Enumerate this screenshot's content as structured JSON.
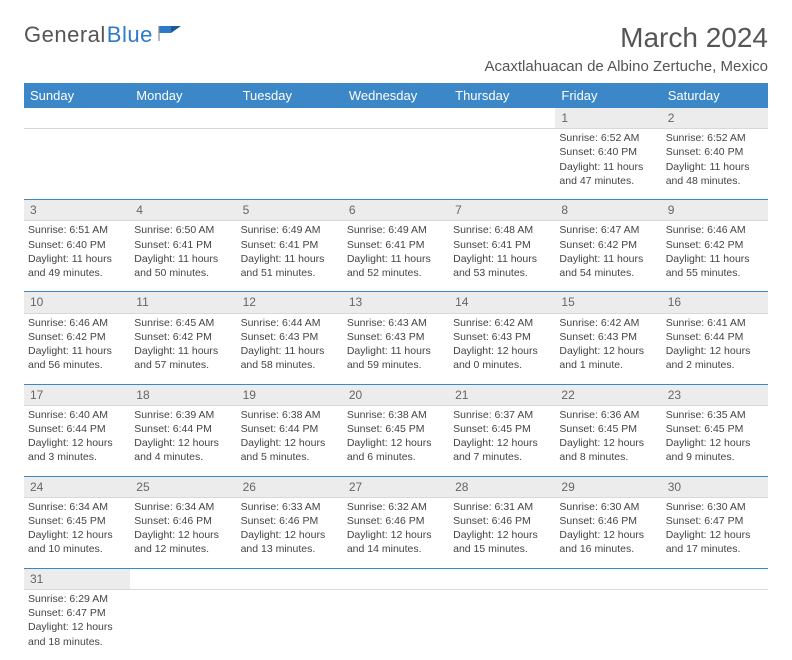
{
  "logo": {
    "text1": "General",
    "text2": "Blue"
  },
  "title": "March 2024",
  "location": "Acaxtlahuacan de Albino Zertuche, Mexico",
  "colors": {
    "header_bg": "#3b87c8",
    "header_text": "#ffffff",
    "daynum_bg": "#ececec",
    "row_sep": "#3b87c8",
    "body_text": "#444444",
    "title_text": "#555555"
  },
  "weekdays": [
    "Sunday",
    "Monday",
    "Tuesday",
    "Wednesday",
    "Thursday",
    "Friday",
    "Saturday"
  ],
  "weeks": [
    [
      null,
      null,
      null,
      null,
      null,
      {
        "d": "1",
        "sr": "Sunrise: 6:52 AM",
        "ss": "Sunset: 6:40 PM",
        "dl1": "Daylight: 11 hours",
        "dl2": "and 47 minutes."
      },
      {
        "d": "2",
        "sr": "Sunrise: 6:52 AM",
        "ss": "Sunset: 6:40 PM",
        "dl1": "Daylight: 11 hours",
        "dl2": "and 48 minutes."
      }
    ],
    [
      {
        "d": "3",
        "sr": "Sunrise: 6:51 AM",
        "ss": "Sunset: 6:40 PM",
        "dl1": "Daylight: 11 hours",
        "dl2": "and 49 minutes."
      },
      {
        "d": "4",
        "sr": "Sunrise: 6:50 AM",
        "ss": "Sunset: 6:41 PM",
        "dl1": "Daylight: 11 hours",
        "dl2": "and 50 minutes."
      },
      {
        "d": "5",
        "sr": "Sunrise: 6:49 AM",
        "ss": "Sunset: 6:41 PM",
        "dl1": "Daylight: 11 hours",
        "dl2": "and 51 minutes."
      },
      {
        "d": "6",
        "sr": "Sunrise: 6:49 AM",
        "ss": "Sunset: 6:41 PM",
        "dl1": "Daylight: 11 hours",
        "dl2": "and 52 minutes."
      },
      {
        "d": "7",
        "sr": "Sunrise: 6:48 AM",
        "ss": "Sunset: 6:41 PM",
        "dl1": "Daylight: 11 hours",
        "dl2": "and 53 minutes."
      },
      {
        "d": "8",
        "sr": "Sunrise: 6:47 AM",
        "ss": "Sunset: 6:42 PM",
        "dl1": "Daylight: 11 hours",
        "dl2": "and 54 minutes."
      },
      {
        "d": "9",
        "sr": "Sunrise: 6:46 AM",
        "ss": "Sunset: 6:42 PM",
        "dl1": "Daylight: 11 hours",
        "dl2": "and 55 minutes."
      }
    ],
    [
      {
        "d": "10",
        "sr": "Sunrise: 6:46 AM",
        "ss": "Sunset: 6:42 PM",
        "dl1": "Daylight: 11 hours",
        "dl2": "and 56 minutes."
      },
      {
        "d": "11",
        "sr": "Sunrise: 6:45 AM",
        "ss": "Sunset: 6:42 PM",
        "dl1": "Daylight: 11 hours",
        "dl2": "and 57 minutes."
      },
      {
        "d": "12",
        "sr": "Sunrise: 6:44 AM",
        "ss": "Sunset: 6:43 PM",
        "dl1": "Daylight: 11 hours",
        "dl2": "and 58 minutes."
      },
      {
        "d": "13",
        "sr": "Sunrise: 6:43 AM",
        "ss": "Sunset: 6:43 PM",
        "dl1": "Daylight: 11 hours",
        "dl2": "and 59 minutes."
      },
      {
        "d": "14",
        "sr": "Sunrise: 6:42 AM",
        "ss": "Sunset: 6:43 PM",
        "dl1": "Daylight: 12 hours",
        "dl2": "and 0 minutes."
      },
      {
        "d": "15",
        "sr": "Sunrise: 6:42 AM",
        "ss": "Sunset: 6:43 PM",
        "dl1": "Daylight: 12 hours",
        "dl2": "and 1 minute."
      },
      {
        "d": "16",
        "sr": "Sunrise: 6:41 AM",
        "ss": "Sunset: 6:44 PM",
        "dl1": "Daylight: 12 hours",
        "dl2": "and 2 minutes."
      }
    ],
    [
      {
        "d": "17",
        "sr": "Sunrise: 6:40 AM",
        "ss": "Sunset: 6:44 PM",
        "dl1": "Daylight: 12 hours",
        "dl2": "and 3 minutes."
      },
      {
        "d": "18",
        "sr": "Sunrise: 6:39 AM",
        "ss": "Sunset: 6:44 PM",
        "dl1": "Daylight: 12 hours",
        "dl2": "and 4 minutes."
      },
      {
        "d": "19",
        "sr": "Sunrise: 6:38 AM",
        "ss": "Sunset: 6:44 PM",
        "dl1": "Daylight: 12 hours",
        "dl2": "and 5 minutes."
      },
      {
        "d": "20",
        "sr": "Sunrise: 6:38 AM",
        "ss": "Sunset: 6:45 PM",
        "dl1": "Daylight: 12 hours",
        "dl2": "and 6 minutes."
      },
      {
        "d": "21",
        "sr": "Sunrise: 6:37 AM",
        "ss": "Sunset: 6:45 PM",
        "dl1": "Daylight: 12 hours",
        "dl2": "and 7 minutes."
      },
      {
        "d": "22",
        "sr": "Sunrise: 6:36 AM",
        "ss": "Sunset: 6:45 PM",
        "dl1": "Daylight: 12 hours",
        "dl2": "and 8 minutes."
      },
      {
        "d": "23",
        "sr": "Sunrise: 6:35 AM",
        "ss": "Sunset: 6:45 PM",
        "dl1": "Daylight: 12 hours",
        "dl2": "and 9 minutes."
      }
    ],
    [
      {
        "d": "24",
        "sr": "Sunrise: 6:34 AM",
        "ss": "Sunset: 6:45 PM",
        "dl1": "Daylight: 12 hours",
        "dl2": "and 10 minutes."
      },
      {
        "d": "25",
        "sr": "Sunrise: 6:34 AM",
        "ss": "Sunset: 6:46 PM",
        "dl1": "Daylight: 12 hours",
        "dl2": "and 12 minutes."
      },
      {
        "d": "26",
        "sr": "Sunrise: 6:33 AM",
        "ss": "Sunset: 6:46 PM",
        "dl1": "Daylight: 12 hours",
        "dl2": "and 13 minutes."
      },
      {
        "d": "27",
        "sr": "Sunrise: 6:32 AM",
        "ss": "Sunset: 6:46 PM",
        "dl1": "Daylight: 12 hours",
        "dl2": "and 14 minutes."
      },
      {
        "d": "28",
        "sr": "Sunrise: 6:31 AM",
        "ss": "Sunset: 6:46 PM",
        "dl1": "Daylight: 12 hours",
        "dl2": "and 15 minutes."
      },
      {
        "d": "29",
        "sr": "Sunrise: 6:30 AM",
        "ss": "Sunset: 6:46 PM",
        "dl1": "Daylight: 12 hours",
        "dl2": "and 16 minutes."
      },
      {
        "d": "30",
        "sr": "Sunrise: 6:30 AM",
        "ss": "Sunset: 6:47 PM",
        "dl1": "Daylight: 12 hours",
        "dl2": "and 17 minutes."
      }
    ],
    [
      {
        "d": "31",
        "sr": "Sunrise: 6:29 AM",
        "ss": "Sunset: 6:47 PM",
        "dl1": "Daylight: 12 hours",
        "dl2": "and 18 minutes."
      },
      null,
      null,
      null,
      null,
      null,
      null
    ]
  ]
}
